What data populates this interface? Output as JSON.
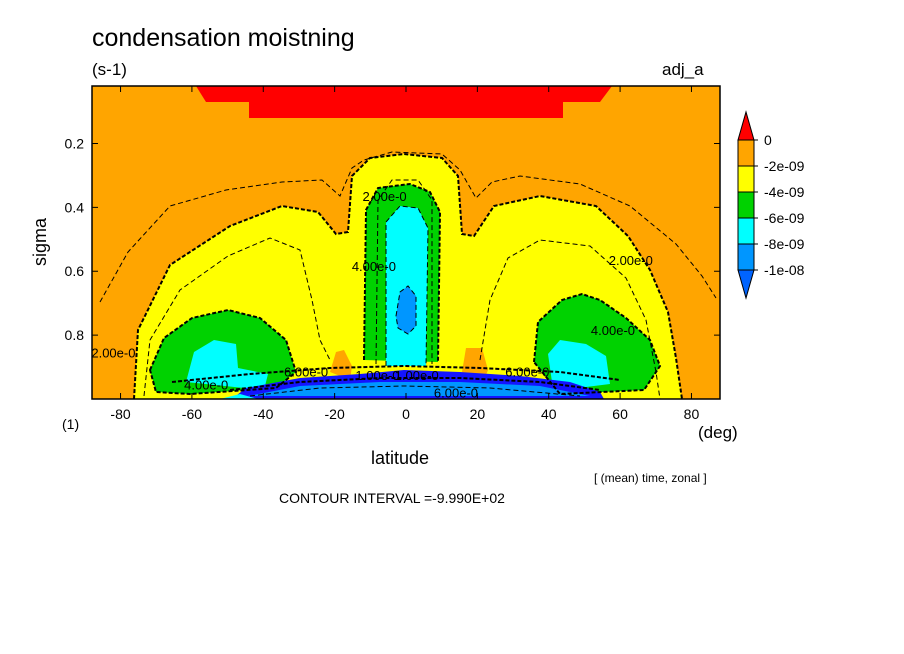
{
  "chart_data": {
    "type": "heatmap",
    "title": "condensation moistning",
    "units": "(s-1)",
    "run_label": "adj_a",
    "xlabel": "latitude",
    "ylabel": "sigma",
    "x_unit": "(deg)",
    "page_marker": "(1)",
    "averaging_note": "[ (mean) time, zonal ]",
    "contour_interval": "CONTOUR INTERVAL =-9.990E+02",
    "xlim": [
      -88,
      88
    ],
    "ylim": [
      1.0,
      0.02
    ],
    "x_ticks": [
      -80,
      -60,
      -40,
      -20,
      0,
      20,
      40,
      60,
      80
    ],
    "y_ticks": [
      0.2,
      0.4,
      0.6,
      0.8
    ],
    "levels": [
      {
        "label": "0",
        "color": "#ff0000"
      },
      {
        "label": "-2e-09",
        "color": "#ffa500"
      },
      {
        "label": "-4e-09",
        "color": "#ffff00"
      },
      {
        "label": "-6e-09",
        "color": "#00d200"
      },
      {
        "label": "-8e-09",
        "color": "#00ffff"
      },
      {
        "label": "-1e-08",
        "color": "#0096ff"
      }
    ],
    "colorbar_extra_colors": {
      "low_end": "#0064ff",
      "deep": "#1414ff"
    },
    "contour_labels": [
      {
        "text": "2.00e-0",
        "lat": -82,
        "sigma": 0.87
      },
      {
        "text": "2.00e-0",
        "lat": -6,
        "sigma": 0.38
      },
      {
        "text": "4.00e-0",
        "lat": -9,
        "sigma": 0.6
      },
      {
        "text": "2.00e-0",
        "lat": 63,
        "sigma": 0.58
      },
      {
        "text": "4.00e-0",
        "lat": 58,
        "sigma": 0.8
      },
      {
        "text": "4.00e-0",
        "lat": -56,
        "sigma": 0.97
      },
      {
        "text": "6.00e-0",
        "lat": -28,
        "sigma": 0.93
      },
      {
        "text": "1.00e-0",
        "lat": -8,
        "sigma": 0.94
      },
      {
        "text": "1.00e-0",
        "lat": 3,
        "sigma": 0.94
      },
      {
        "text": "6.00e-0",
        "lat": 34,
        "sigma": 0.93
      },
      {
        "text": "6.00e-0",
        "lat": 14,
        "sigma": 0.995
      }
    ]
  }
}
